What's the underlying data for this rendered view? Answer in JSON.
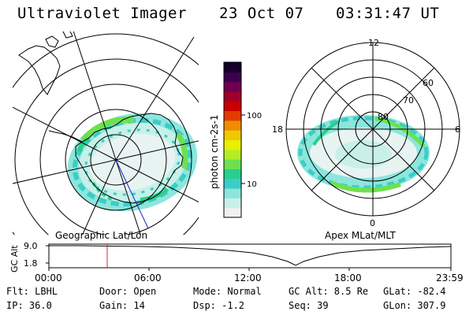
{
  "header": {
    "title": "Ultraviolet Imager",
    "date": "23 Oct 07",
    "time": "03:31:47 UT"
  },
  "left_map": {
    "caption": "Geographic Lat/Lon"
  },
  "right_map": {
    "caption": "Apex MLat/MLT",
    "mlt_labels": [
      "12",
      "6",
      "0",
      "18"
    ],
    "lat_labels": [
      "60",
      "70",
      "80"
    ]
  },
  "colorbar": {
    "label": "photon cm-2s-1",
    "ticks": [
      "100",
      "10"
    ],
    "colors": [
      "#f0f0f0",
      "#c8f0e8",
      "#8ce6dc",
      "#3ccdc8",
      "#28d08c",
      "#6ee050",
      "#b4ec28",
      "#e6f000",
      "#f0c800",
      "#f08c00",
      "#e03c00",
      "#c80000",
      "#a00028",
      "#6e0050",
      "#3c0050",
      "#140028"
    ]
  },
  "altitude_plot": {
    "ylabel": "GC Alt",
    "yticks": [
      "9.0",
      "1.8"
    ],
    "xticks": [
      "00:00",
      "06:00",
      "12:00",
      "18:00",
      "23:59"
    ],
    "current_time_marker": "03:31:47"
  },
  "info": {
    "flt": "Flt: LBHL",
    "door": "Door: Open",
    "mode": "Mode: Normal",
    "gcalt": "GC Alt: 8.5 Re",
    "glat": "GLat: -82.4",
    "ip": "IP: 36.0",
    "gain": "Gain: 14",
    "dsp": "Dsp:   -1.2",
    "seq": "Seq: 39",
    "glon": "GLon: 307.9"
  }
}
